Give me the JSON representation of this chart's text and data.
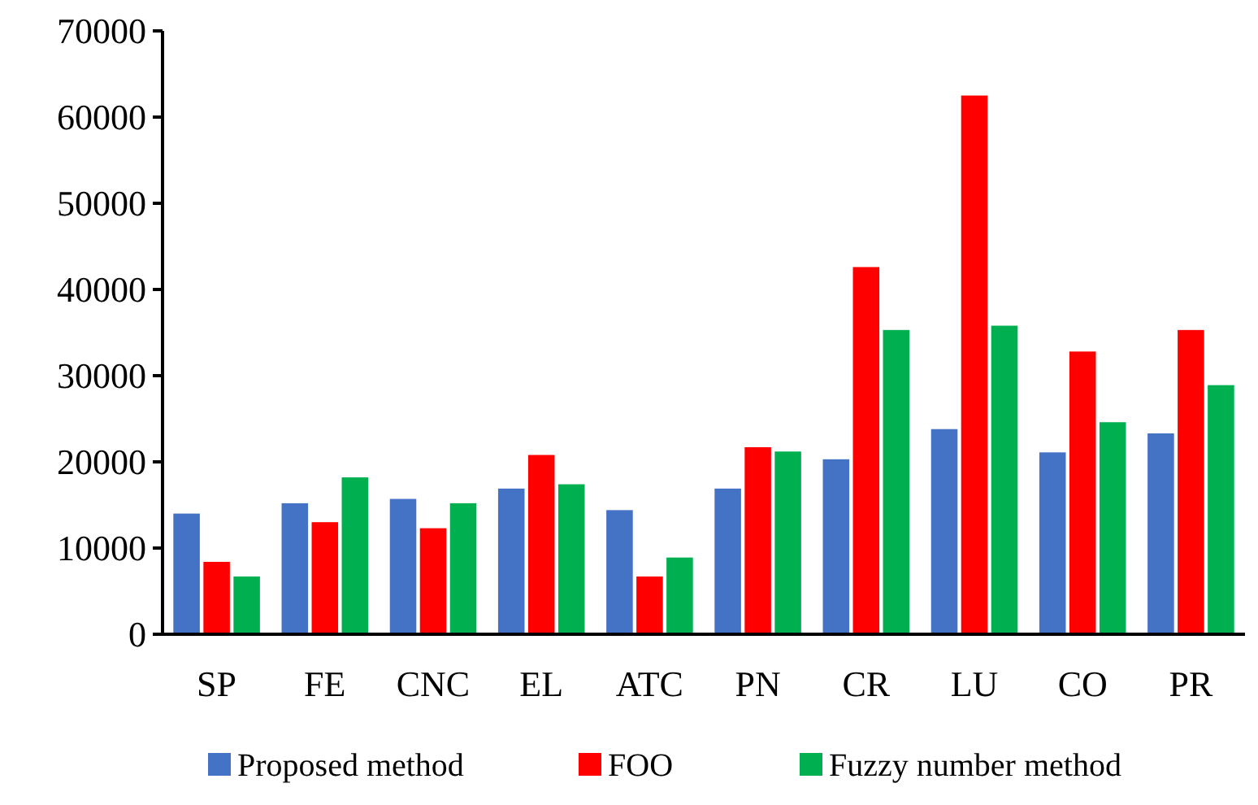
{
  "chart_data": {
    "type": "bar",
    "categories": [
      "SP",
      "FE",
      "CNC",
      "EL",
      "ATC",
      "PN",
      "CR",
      "LU",
      "CO",
      "PR"
    ],
    "series": [
      {
        "name": "Proposed method",
        "color": "#4472c4",
        "values": [
          14000,
          15200,
          15700,
          16900,
          14400,
          16900,
          20300,
          23800,
          21100,
          23300
        ]
      },
      {
        "name": "FOO",
        "color": "#ff0000",
        "values": [
          8400,
          13000,
          12300,
          20800,
          6700,
          21700,
          42600,
          62500,
          32800,
          35300
        ]
      },
      {
        "name": "Fuzzy number method",
        "color": "#00b050",
        "values": [
          6700,
          18200,
          15200,
          17400,
          8900,
          21200,
          35300,
          35800,
          24600,
          28900
        ]
      }
    ],
    "ylim": [
      0,
      70000
    ],
    "yticks": [
      0,
      10000,
      20000,
      30000,
      40000,
      50000,
      60000,
      70000
    ],
    "grid": false,
    "legend": "bottom"
  }
}
